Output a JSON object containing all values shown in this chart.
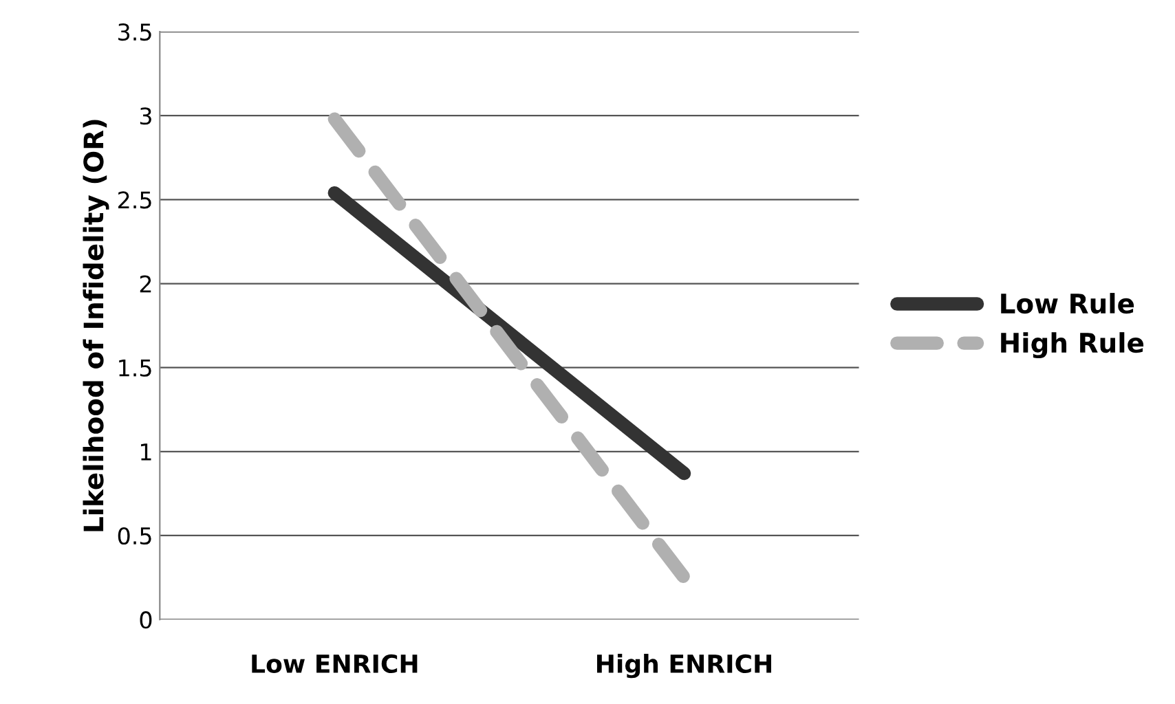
{
  "chart_data": {
    "type": "line",
    "ylabel": "Likelihood of Infidelity (OR)",
    "categories": [
      "Low ENRICH",
      "High ENRICH"
    ],
    "series": [
      {
        "name": "Low Rule",
        "color": "#333333",
        "values": [
          2.54,
          0.87
        ],
        "line_style": "solid"
      },
      {
        "name": "High Rule",
        "color": "#b0b0b0",
        "values": [
          2.98,
          0.25
        ],
        "line_style": "dashed"
      }
    ],
    "ylim": [
      0,
      3.5
    ],
    "yticks": [
      0,
      0.5,
      1,
      1.5,
      2,
      2.5,
      3,
      3.5
    ],
    "grid": "y",
    "legend": "right",
    "marker": "none"
  }
}
